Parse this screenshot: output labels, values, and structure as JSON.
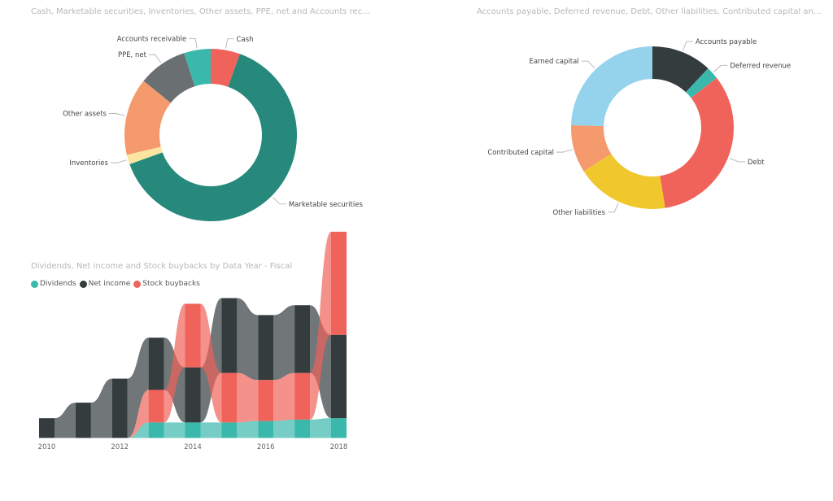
{
  "chart_data": [
    {
      "type": "pie",
      "title": "Cash, Marketable securities, Inventories, Other assets, PPE, net and Accounts receivable",
      "categories": [
        "Cash",
        "Marketable securities",
        "Inventories",
        "Other assets",
        "PPE, net",
        "Accounts receivable"
      ],
      "values": [
        5.5,
        64.0,
        1.8,
        14.5,
        9.2,
        5.0
      ],
      "colors": [
        "#f0635a",
        "#26897c",
        "#fce5a0",
        "#f59a6c",
        "#6a7072",
        "#3bb8ac"
      ]
    },
    {
      "type": "pie",
      "title": "Accounts payable, Deferred revenue, Debt, Other liabilities, Contributed capital and Earned c...",
      "categories": [
        "Accounts payable",
        "Deferred revenue",
        "Debt",
        "Other liabilities",
        "Contributed capital",
        "Earned capital"
      ],
      "values": [
        12.0,
        2.5,
        33.0,
        18.5,
        9.5,
        24.5
      ],
      "colors": [
        "#343c3e",
        "#3bb8ac",
        "#f0635a",
        "#f0c82e",
        "#f59a6c",
        "#95d2ec"
      ]
    },
    {
      "type": "area",
      "title": "Dividends, Net income and Stock buybacks by Data Year - Fiscal",
      "x": [
        2010,
        2011,
        2012,
        2013,
        2014,
        2015,
        2016,
        2017,
        2018
      ],
      "xticks": [
        "2010",
        "2012",
        "2014",
        "2016",
        "2018"
      ],
      "series": [
        {
          "name": "Dividends",
          "color": "#3bb8ac",
          "values": [
            0,
            0,
            0,
            11,
            11,
            11,
            12,
            13,
            14
          ]
        },
        {
          "name": "Net income",
          "color": "#343c3e",
          "values": [
            14,
            25,
            42,
            37,
            39,
            53,
            46,
            48,
            59
          ]
        },
        {
          "name": "Stock buybacks",
          "color": "#f0635a",
          "values": [
            0,
            0,
            0,
            23,
            45,
            35,
            29,
            33,
            73
          ]
        }
      ]
    }
  ]
}
